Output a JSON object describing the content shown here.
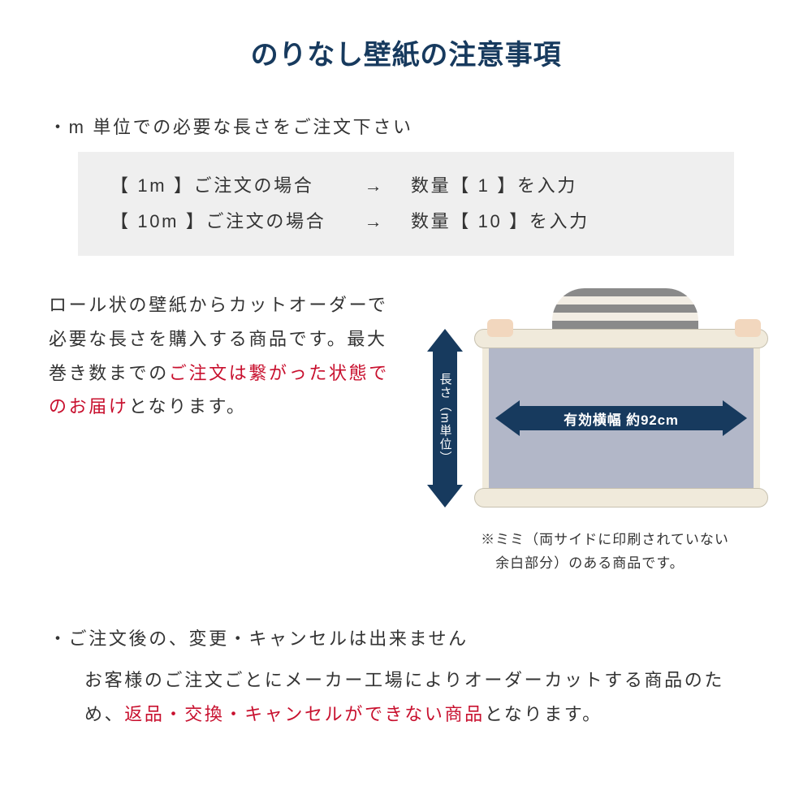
{
  "colors": {
    "title": "#173a5e",
    "text": "#333333",
    "emphasis": "#c8102e",
    "graybox_bg": "#efefef",
    "arrow_bg": "#173a5e",
    "arrow_text": "#ffffff",
    "roll_edge": "#f0eadb",
    "roll_body": "#b2b7c8",
    "page_bg": "#ffffff"
  },
  "typography": {
    "title_fontsize": 34,
    "body_fontsize": 22,
    "note_fontsize": 17,
    "arrow_label_fontsize": 17
  },
  "title": "のりなし壁紙の注意事項",
  "section1": {
    "bullet": "・m 単位での必要な長さをご注文下さい",
    "rows": [
      {
        "left": "【 1m 】ご注文の場合",
        "arrow": "→",
        "right": "数量【 1 】を入力"
      },
      {
        "left": "【 10m 】ご注文の場合",
        "arrow": "→",
        "right": "数量【 10 】を入力"
      }
    ]
  },
  "midtext": {
    "part1": "ロール状の壁紙からカットオーダーで必要な長さを購入する商品です。最大巻き数までの",
    "part2_red": "ご注文は繋がった状態でのお届け",
    "part3": "となります。"
  },
  "diagram": {
    "vertical_label": "長さ（m単位）",
    "horizontal_label": "有効横幅 約92cm",
    "note_line1": "※ミミ（両サイドに印刷されていない",
    "note_line2": "　余白部分）のある商品です。"
  },
  "section2": {
    "bullet": "・ご注文後の、変更・キャンセルは出来ません",
    "body_part1": "お客様のご注文ごとにメーカー工場によりオーダーカットする商品のため、",
    "body_part2_red": "返品・交換・キャンセルができない商品",
    "body_part3": "となります。"
  }
}
